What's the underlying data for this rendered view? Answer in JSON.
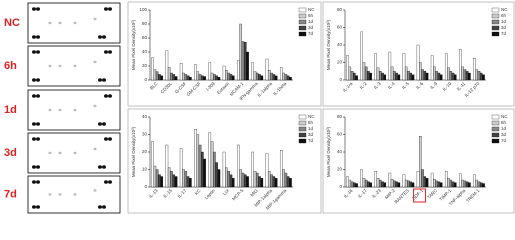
{
  "blot_panels": [
    "NC",
    "6h",
    "1d",
    "3d",
    "7d"
  ],
  "chart_data": [
    {
      "type": "bar",
      "y_label": "Mean Pixel Density(x10³)",
      "ylim": [
        0,
        100
      ],
      "yticks": [
        0,
        20,
        40,
        60,
        80,
        100
      ],
      "categories": [
        "BLC",
        "CD30L",
        "G-CSF",
        "GM-CSF",
        "I-309",
        "Eotaxin",
        "sICAM-1",
        "IFN-gamma",
        "IL-1alpha",
        "IL-1beta"
      ],
      "series": [
        {
          "name": "NC",
          "color": "#ffffff",
          "values": [
            32,
            42,
            24,
            22,
            25,
            20,
            28,
            25,
            30,
            18
          ]
        },
        {
          "name": "6h",
          "color": "#cccccc",
          "values": [
            15,
            18,
            10,
            12,
            10,
            14,
            80,
            12,
            14,
            10
          ]
        },
        {
          "name": "1d",
          "color": "#888888",
          "values": [
            12,
            10,
            8,
            8,
            8,
            10,
            55,
            10,
            10,
            8
          ]
        },
        {
          "name": "3d",
          "color": "#444444",
          "values": [
            8,
            8,
            6,
            6,
            6,
            8,
            54,
            8,
            8,
            6
          ]
        },
        {
          "name": "7d",
          "color": "#111111",
          "values": [
            6,
            5,
            4,
            5,
            4,
            6,
            40,
            6,
            6,
            4
          ]
        }
      ]
    },
    {
      "type": "bar",
      "y_label": "Mean Pixel Density(x10³)",
      "ylim": [
        0,
        80
      ],
      "yticks": [
        0,
        20,
        40,
        60,
        80
      ],
      "categories": [
        "IL-1ra",
        "IL-2",
        "IL-3",
        "IL-4",
        "IL-5",
        "IL-6",
        "IL-9",
        "IL-10",
        "IL-11",
        "IL-12 p70"
      ],
      "series": [
        {
          "name": "NC",
          "color": "#ffffff",
          "values": [
            28,
            55,
            30,
            32,
            30,
            40,
            28,
            30,
            35,
            25
          ]
        },
        {
          "name": "6h",
          "color": "#cccccc",
          "values": [
            15,
            20,
            14,
            15,
            15,
            20,
            15,
            14,
            15,
            12
          ]
        },
        {
          "name": "1d",
          "color": "#888888",
          "values": [
            10,
            15,
            10,
            10,
            10,
            12,
            10,
            10,
            12,
            10
          ]
        },
        {
          "name": "3d",
          "color": "#444444",
          "values": [
            8,
            10,
            8,
            8,
            8,
            10,
            8,
            8,
            10,
            8
          ]
        },
        {
          "name": "7d",
          "color": "#111111",
          "values": [
            5,
            8,
            6,
            6,
            6,
            8,
            6,
            6,
            8,
            6
          ]
        }
      ]
    },
    {
      "type": "bar",
      "y_label": "Mean Pixel Density(x10³)",
      "ylim": [
        0,
        40
      ],
      "yticks": [
        0,
        10,
        20,
        30,
        40
      ],
      "categories": [
        "IL-13",
        "IL-15",
        "IL-17",
        "KC",
        "Leptin",
        "LIX",
        "MCP-5",
        "MIG",
        "MIP-1alpha",
        "MIP-1gamma"
      ],
      "series": [
        {
          "name": "NC",
          "color": "#ffffff",
          "values": [
            26,
            24,
            22,
            33,
            31,
            20,
            24,
            20,
            19,
            21
          ]
        },
        {
          "name": "6h",
          "color": "#cccccc",
          "values": [
            12,
            11,
            10,
            30,
            26,
            11,
            10,
            9,
            9,
            10
          ]
        },
        {
          "name": "1d",
          "color": "#888888",
          "values": [
            10,
            9,
            9,
            24,
            20,
            9,
            8,
            8,
            7,
            8
          ]
        },
        {
          "name": "3d",
          "color": "#444444",
          "values": [
            7,
            7,
            6,
            20,
            14,
            7,
            7,
            6,
            6,
            6
          ]
        },
        {
          "name": "7d",
          "color": "#111111",
          "values": [
            6,
            6,
            5,
            16,
            10,
            5,
            6,
            5,
            5,
            5
          ]
        }
      ]
    },
    {
      "type": "bar",
      "y_label": "Mean Pixel Density(x10³)",
      "ylim": [
        0,
        80
      ],
      "yticks": [
        0,
        20,
        40,
        60,
        80
      ],
      "highlight_index": 5,
      "categories": [
        "IL-16",
        "IL-17",
        "IL-23",
        "MIP-2",
        "RANTES",
        "SDF-1",
        "TARC",
        "TIMP-1",
        "TNF-alpha",
        "TREM-1"
      ],
      "series": [
        {
          "name": "NC",
          "color": "#ffffff",
          "values": [
            12,
            20,
            18,
            16,
            14,
            18,
            16,
            18,
            15,
            14
          ]
        },
        {
          "name": "6h",
          "color": "#cccccc",
          "values": [
            8,
            10,
            10,
            9,
            8,
            58,
            9,
            10,
            8,
            8
          ]
        },
        {
          "name": "1d",
          "color": "#888888",
          "values": [
            6,
            8,
            8,
            7,
            7,
            20,
            7,
            8,
            7,
            6
          ]
        },
        {
          "name": "3d",
          "color": "#444444",
          "values": [
            5,
            6,
            6,
            6,
            6,
            12,
            6,
            6,
            6,
            5
          ]
        },
        {
          "name": "7d",
          "color": "#111111",
          "values": [
            4,
            5,
            5,
            5,
            5,
            10,
            5,
            5,
            5,
            4
          ]
        }
      ]
    }
  ]
}
